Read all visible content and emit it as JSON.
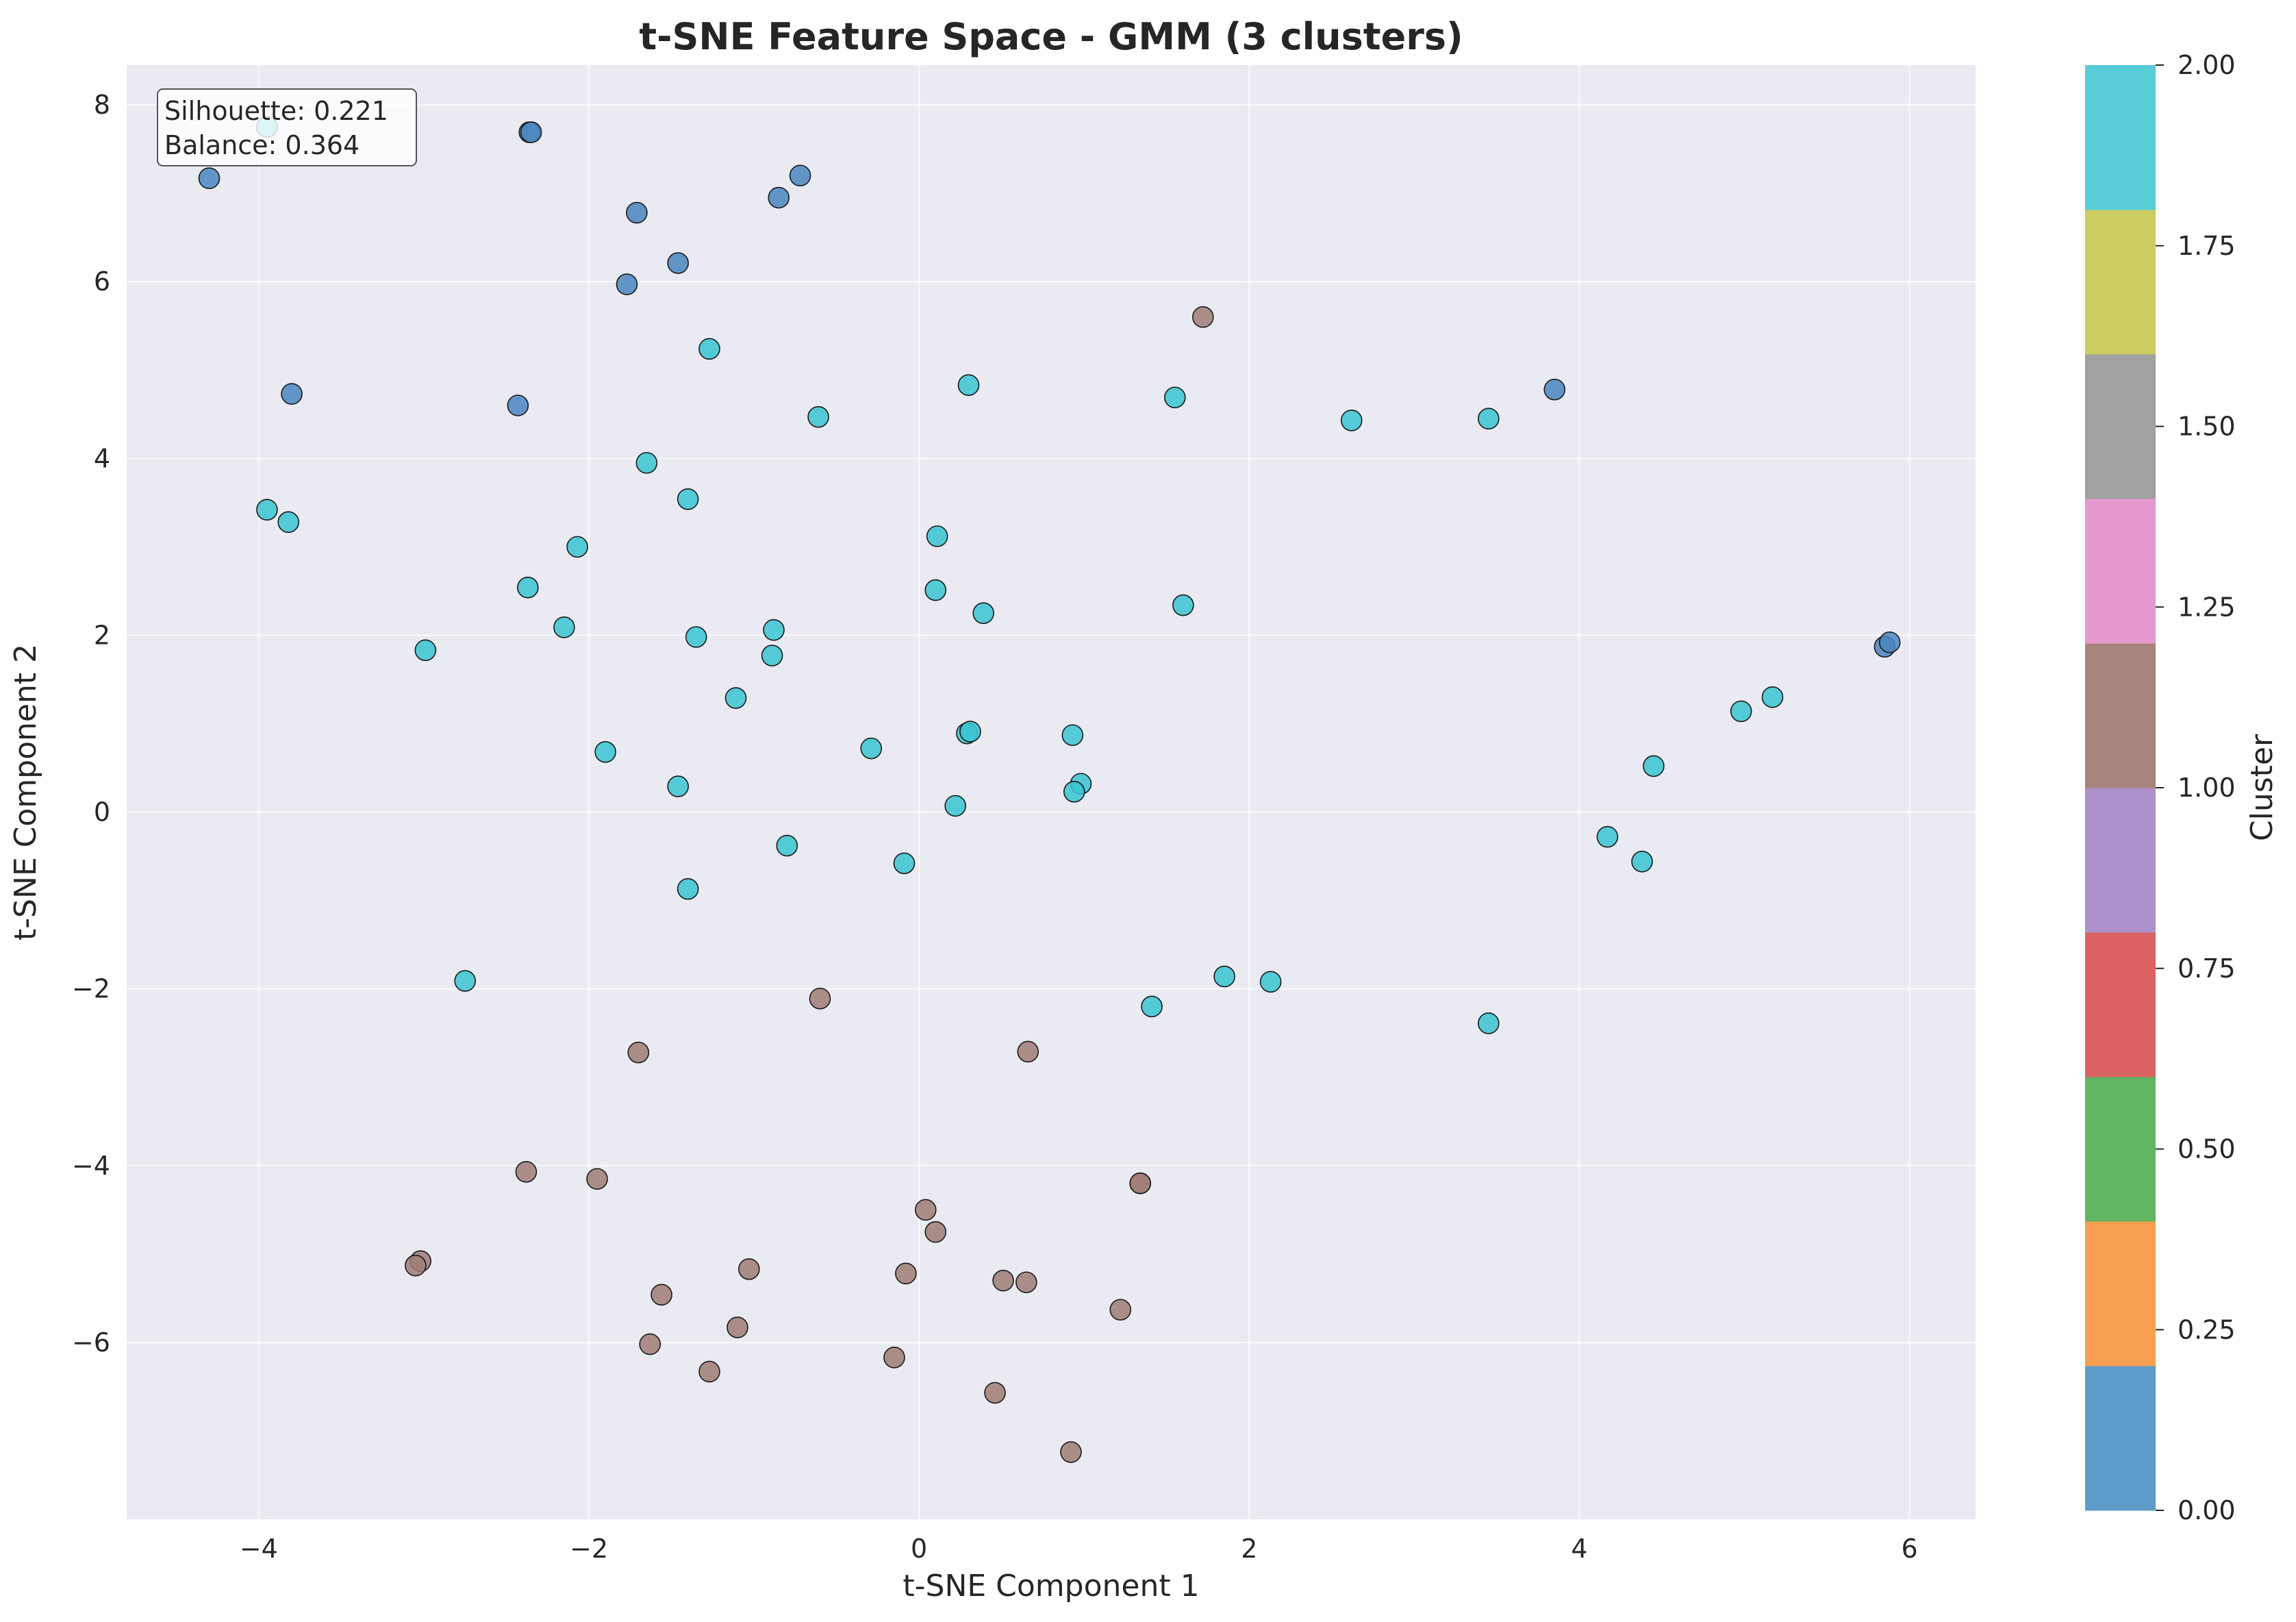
{
  "chart_data": {
    "type": "scatter",
    "title": "t-SNE Feature Space - GMM (3 clusters)",
    "xlabel": "t-SNE Component 1",
    "ylabel": "t-SNE Component 2",
    "xlim": [
      -4.8,
      6.4
    ],
    "ylim": [
      -8.0,
      8.45
    ],
    "xticks": [
      -4,
      -2,
      0,
      2,
      4,
      6
    ],
    "yticks": [
      -6,
      -4,
      -2,
      0,
      2,
      4,
      6,
      8
    ],
    "grid": true,
    "annotation": {
      "lines": [
        "Silhouette: 0.221",
        "Balance: 0.364"
      ],
      "placement": "top-left"
    },
    "colorbar": {
      "label": "Cluster",
      "min": 0.0,
      "max": 2.0,
      "ticks": [
        "0.00",
        "0.25",
        "0.50",
        "0.75",
        "1.00",
        "1.25",
        "1.50",
        "1.75",
        "2.00"
      ],
      "colors": [
        "#5d9bc8",
        "#f69f50",
        "#62b563",
        "#dc6363",
        "#ac91cb",
        "#a8847c",
        "#e599ce",
        "#a1a1a1",
        "#cbcc61",
        "#58ccd7"
      ]
    },
    "cluster_colors": {
      "0": "#4a86c0",
      "1": "#a07c76",
      "2": "#3ac4d1"
    },
    "points": [
      {
        "x": -4.3,
        "y": 7.17,
        "cluster": 0
      },
      {
        "x": -3.95,
        "y": 7.75,
        "cluster": 2
      },
      {
        "x": -2.36,
        "y": 7.69,
        "cluster": 0
      },
      {
        "x": -2.35,
        "y": 7.69,
        "cluster": 0
      },
      {
        "x": -0.72,
        "y": 7.2,
        "cluster": 0
      },
      {
        "x": -0.85,
        "y": 6.95,
        "cluster": 0
      },
      {
        "x": -1.71,
        "y": 6.78,
        "cluster": 0
      },
      {
        "x": -1.46,
        "y": 6.21,
        "cluster": 0
      },
      {
        "x": -1.77,
        "y": 5.97,
        "cluster": 0
      },
      {
        "x": -3.8,
        "y": 4.73,
        "cluster": 0
      },
      {
        "x": -2.43,
        "y": 4.6,
        "cluster": 0
      },
      {
        "x": 3.85,
        "y": 4.78,
        "cluster": 0
      },
      {
        "x": 5.85,
        "y": 1.87,
        "cluster": 0
      },
      {
        "x": 5.88,
        "y": 1.92,
        "cluster": 0
      },
      {
        "x": -1.27,
        "y": 5.24,
        "cluster": 2
      },
      {
        "x": 0.3,
        "y": 4.83,
        "cluster": 2
      },
      {
        "x": -0.61,
        "y": 4.47,
        "cluster": 2
      },
      {
        "x": 1.55,
        "y": 4.69,
        "cluster": 2
      },
      {
        "x": 2.62,
        "y": 4.43,
        "cluster": 2
      },
      {
        "x": 3.45,
        "y": 4.45,
        "cluster": 2
      },
      {
        "x": -1.65,
        "y": 3.95,
        "cluster": 2
      },
      {
        "x": -1.4,
        "y": 3.54,
        "cluster": 2
      },
      {
        "x": -3.95,
        "y": 3.42,
        "cluster": 2
      },
      {
        "x": -3.82,
        "y": 3.28,
        "cluster": 2
      },
      {
        "x": 0.11,
        "y": 3.12,
        "cluster": 2
      },
      {
        "x": -2.07,
        "y": 3.0,
        "cluster": 2
      },
      {
        "x": -2.37,
        "y": 2.54,
        "cluster": 2
      },
      {
        "x": 0.1,
        "y": 2.51,
        "cluster": 2
      },
      {
        "x": 0.39,
        "y": 2.25,
        "cluster": 2
      },
      {
        "x": 1.6,
        "y": 2.34,
        "cluster": 2
      },
      {
        "x": -2.15,
        "y": 2.09,
        "cluster": 2
      },
      {
        "x": -0.88,
        "y": 2.06,
        "cluster": 2
      },
      {
        "x": -1.35,
        "y": 1.98,
        "cluster": 2
      },
      {
        "x": -0.89,
        "y": 1.77,
        "cluster": 2
      },
      {
        "x": -2.99,
        "y": 1.83,
        "cluster": 2
      },
      {
        "x": -1.11,
        "y": 1.29,
        "cluster": 2
      },
      {
        "x": 5.17,
        "y": 1.3,
        "cluster": 2
      },
      {
        "x": 4.98,
        "y": 1.14,
        "cluster": 2
      },
      {
        "x": 0.29,
        "y": 0.89,
        "cluster": 2
      },
      {
        "x": 0.31,
        "y": 0.91,
        "cluster": 2
      },
      {
        "x": 0.93,
        "y": 0.87,
        "cluster": 2
      },
      {
        "x": -1.9,
        "y": 0.68,
        "cluster": 2
      },
      {
        "x": -0.29,
        "y": 0.72,
        "cluster": 2
      },
      {
        "x": 4.45,
        "y": 0.52,
        "cluster": 2
      },
      {
        "x": -1.46,
        "y": 0.29,
        "cluster": 2
      },
      {
        "x": 0.98,
        "y": 0.32,
        "cluster": 2
      },
      {
        "x": 0.94,
        "y": 0.23,
        "cluster": 2
      },
      {
        "x": 0.22,
        "y": 0.07,
        "cluster": 2
      },
      {
        "x": -0.8,
        "y": -0.38,
        "cluster": 2
      },
      {
        "x": 4.17,
        "y": -0.28,
        "cluster": 2
      },
      {
        "x": 4.38,
        "y": -0.56,
        "cluster": 2
      },
      {
        "x": -0.09,
        "y": -0.58,
        "cluster": 2
      },
      {
        "x": -1.4,
        "y": -0.87,
        "cluster": 2
      },
      {
        "x": -2.75,
        "y": -1.91,
        "cluster": 2
      },
      {
        "x": 1.85,
        "y": -1.86,
        "cluster": 2
      },
      {
        "x": 2.13,
        "y": -1.92,
        "cluster": 2
      },
      {
        "x": 1.41,
        "y": -2.2,
        "cluster": 2
      },
      {
        "x": 3.45,
        "y": -2.39,
        "cluster": 2
      },
      {
        "x": 1.72,
        "y": 5.6,
        "cluster": 1
      },
      {
        "x": -0.6,
        "y": -2.11,
        "cluster": 1
      },
      {
        "x": -1.7,
        "y": -2.72,
        "cluster": 1
      },
      {
        "x": 0.66,
        "y": -2.71,
        "cluster": 1
      },
      {
        "x": -2.38,
        "y": -4.07,
        "cluster": 1
      },
      {
        "x": -1.95,
        "y": -4.15,
        "cluster": 1
      },
      {
        "x": 1.34,
        "y": -4.2,
        "cluster": 1
      },
      {
        "x": 1.34,
        "y": -4.2,
        "cluster": 1
      },
      {
        "x": 0.04,
        "y": -4.5,
        "cluster": 1
      },
      {
        "x": 0.1,
        "y": -4.75,
        "cluster": 1
      },
      {
        "x": -3.02,
        "y": -5.08,
        "cluster": 1
      },
      {
        "x": -3.05,
        "y": -5.13,
        "cluster": 1
      },
      {
        "x": -1.03,
        "y": -5.17,
        "cluster": 1
      },
      {
        "x": -0.08,
        "y": -5.22,
        "cluster": 1
      },
      {
        "x": 0.51,
        "y": -5.3,
        "cluster": 1
      },
      {
        "x": 0.65,
        "y": -5.32,
        "cluster": 1
      },
      {
        "x": -1.56,
        "y": -5.46,
        "cluster": 1
      },
      {
        "x": 1.22,
        "y": -5.63,
        "cluster": 1
      },
      {
        "x": -1.1,
        "y": -5.83,
        "cluster": 1
      },
      {
        "x": -1.63,
        "y": -6.02,
        "cluster": 1
      },
      {
        "x": -0.15,
        "y": -6.17,
        "cluster": 1
      },
      {
        "x": -1.27,
        "y": -6.33,
        "cluster": 1
      },
      {
        "x": 0.46,
        "y": -6.57,
        "cluster": 1
      },
      {
        "x": 0.92,
        "y": -7.24,
        "cluster": 1
      }
    ]
  }
}
